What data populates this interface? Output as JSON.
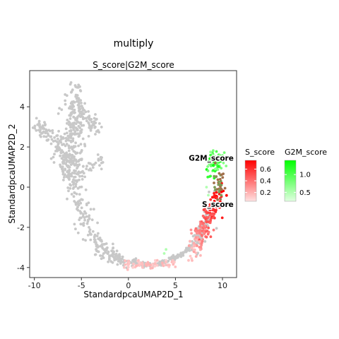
{
  "chart_data": {
    "type": "scatter",
    "title": "multiply",
    "subtitle": "S_score|G2M_score",
    "xlabel": "StandardpcaUMAP2D_1",
    "ylabel": "StandardpcaUMAP2D_2",
    "xlim": [
      -10.5,
      11.5
    ],
    "ylim": [
      -4.5,
      5.8
    ],
    "xticks": [
      -10,
      -5,
      0,
      5,
      10
    ],
    "yticks": [
      -4,
      -2,
      0,
      2,
      4
    ],
    "xtick_labels": [
      "-10",
      "-5",
      "0",
      "5",
      "10"
    ],
    "ytick_labels": [
      "-4",
      "-2",
      "0",
      "2",
      "4"
    ],
    "grid": false,
    "background_point_color": "#c8c8c8",
    "legend_placement": "right",
    "legends": [
      {
        "title": "S_score",
        "color_low": "#ffe2e2",
        "color_high": "#ff0000",
        "range": [
          0.05,
          0.75
        ],
        "ticks": [
          0.2,
          0.4,
          0.6
        ],
        "tick_labels": [
          "0.2",
          "0.4",
          "0.6"
        ]
      },
      {
        "title": "G2M_score",
        "color_low": "#e2ffe2",
        "color_high": "#00ff00",
        "range": [
          0.25,
          1.4
        ],
        "ticks": [
          0.5,
          1.0
        ],
        "tick_labels": [
          "0.5",
          "1.0"
        ]
      }
    ],
    "annotations": [
      {
        "text": "G2M_score",
        "x": 8.8,
        "y": 1.45
      },
      {
        "text": "S_score",
        "x": 9.5,
        "y": -0.85
      }
    ],
    "series": [
      {
        "name": "S_score",
        "description": "cells colored by S_score, concentrated along right arm x 7–10, y -3.5 to 0"
      },
      {
        "name": "G2M_score",
        "description": "cells colored by G2M_score, concentrated at top of right arm x 8.5–10, y 0.5 to 1.8"
      }
    ],
    "point_count": 1200
  }
}
